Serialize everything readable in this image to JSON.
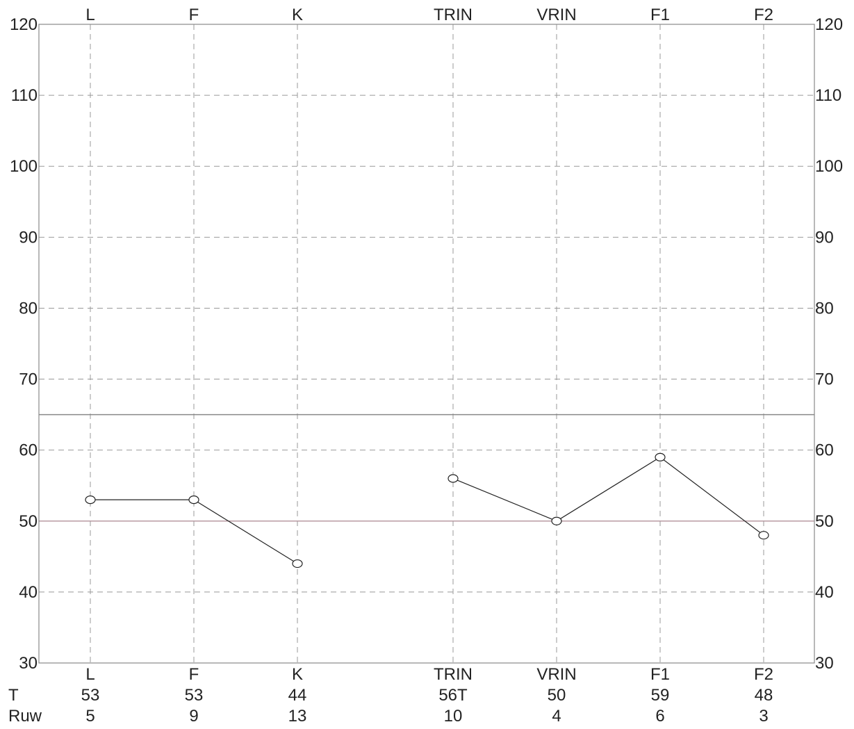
{
  "chart_data": {
    "type": "line",
    "title": "",
    "xlabel": "",
    "ylabel": "",
    "categories": [
      "L",
      "F",
      "K",
      "TRIN",
      "VRIN",
      "F1",
      "F2"
    ],
    "y_ticks": [
      30,
      40,
      50,
      60,
      70,
      80,
      90,
      100,
      110,
      120
    ],
    "ylim": [
      30,
      120
    ],
    "grid": true,
    "series": [
      {
        "segments": [
          {
            "categories": [
              "L",
              "F",
              "K"
            ],
            "values": [
              53,
              53,
              44
            ]
          },
          {
            "categories": [
              "TRIN",
              "VRIN",
              "F1",
              "F2"
            ],
            "values": [
              56,
              50,
              59,
              48
            ]
          }
        ]
      }
    ],
    "reference_lines": [
      {
        "value": 65,
        "color": "#888888"
      },
      {
        "value": 50,
        "color": "#b89aa2"
      }
    ],
    "table": {
      "rows": [
        {
          "label": "T",
          "values": [
            "53",
            "53",
            "44",
            "56T",
            "50",
            "59",
            "48"
          ]
        },
        {
          "label": "Ruw",
          "values": [
            "5",
            "9",
            "13",
            "10",
            "4",
            "6",
            "3"
          ]
        }
      ]
    }
  },
  "colors": {
    "axis": "#888888",
    "grid": "#999999",
    "line": "#222222",
    "text": "#222222",
    "ref65": "#888888",
    "ref50": "#b89aa2"
  }
}
